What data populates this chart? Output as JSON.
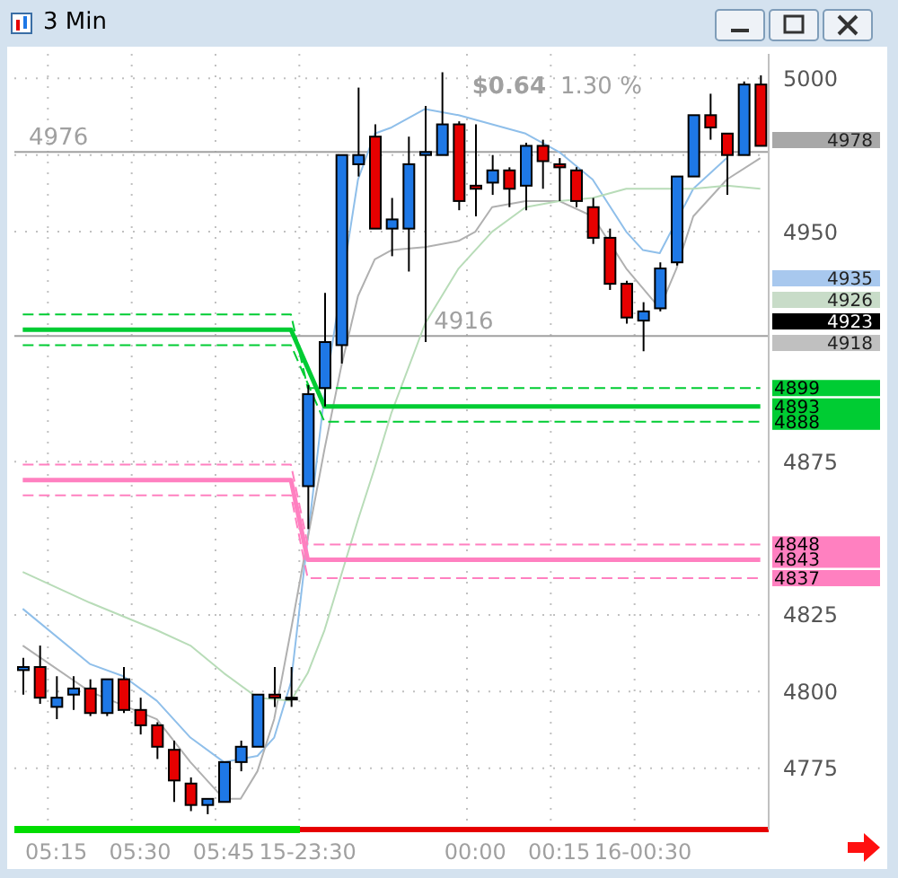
{
  "chart_data": {
    "type": "candlestick",
    "title": "3 Min",
    "categories": [
      null,
      null,
      "05:15",
      null,
      null,
      null,
      null,
      "05:30",
      null,
      null,
      null,
      null,
      "05:45",
      null,
      null,
      null,
      null,
      "15-23:30",
      null,
      null,
      null,
      null,
      null,
      null,
      null,
      null,
      null,
      "00:00",
      null,
      null,
      null,
      null,
      "00:15",
      null,
      null,
      null,
      null,
      "16-00:30",
      null,
      null,
      null,
      null,
      null,
      null,
      null
    ],
    "ohlc": [
      [
        4807,
        4811,
        4799,
        4808
      ],
      [
        4808,
        4815,
        4796,
        4798
      ],
      [
        4795,
        4805,
        4791,
        4798
      ],
      [
        4799,
        4805,
        4794,
        4801
      ],
      [
        4801,
        4804,
        4792,
        4793
      ],
      [
        4793,
        4804,
        4792,
        4804
      ],
      [
        4804,
        4808,
        4793,
        4794
      ],
      [
        4794,
        4798,
        4786,
        4789
      ],
      [
        4789,
        4790,
        4778,
        4782
      ],
      [
        4781,
        4784,
        4764,
        4771
      ],
      [
        4770,
        4772,
        4761,
        4763
      ],
      [
        4763,
        4765,
        4760,
        4765
      ],
      [
        4764,
        4777,
        4764,
        4777
      ],
      [
        4777,
        4784,
        4774,
        4782
      ],
      [
        4782,
        4799,
        4782,
        4799
      ],
      [
        4799,
        4808,
        4795,
        4798
      ],
      [
        4798,
        4808,
        4795,
        4798
      ],
      [
        4867,
        4900,
        4853,
        4897
      ],
      [
        4899,
        4930,
        4893,
        4914
      ],
      [
        4913,
        4975,
        4907,
        4975
      ],
      [
        4972,
        4997,
        4968,
        4975
      ],
      [
        4981,
        4985,
        4951,
        4951
      ],
      [
        4951,
        4961,
        4942,
        4954
      ],
      [
        4951,
        4981,
        4937,
        4972
      ],
      [
        4975,
        4991,
        4914,
        4976
      ],
      [
        4975,
        5002,
        4975,
        4985
      ],
      [
        4985,
        4986,
        4957,
        4960
      ],
      [
        4965,
        4985,
        4955,
        4964
      ],
      [
        4966,
        4975,
        4962,
        4970
      ],
      [
        4970,
        4971,
        4958,
        4964
      ],
      [
        4965,
        4979,
        4957,
        4978
      ],
      [
        4978,
        4980,
        4964,
        4973
      ],
      [
        4972,
        4974,
        4960,
        4971
      ],
      [
        4970,
        4971,
        4958,
        4960
      ],
      [
        4958,
        4961,
        4946,
        4948
      ],
      [
        4948,
        4951,
        4931,
        4933
      ],
      [
        4933,
        4934,
        4920,
        4922
      ],
      [
        4921,
        4927,
        4911,
        4924
      ],
      [
        4925,
        4940,
        4924,
        4938
      ],
      [
        4940,
        4968,
        4939,
        4968
      ],
      [
        4968,
        4988,
        4968,
        4988
      ],
      [
        4988,
        4995,
        4980,
        4984
      ],
      [
        4982,
        4982,
        4962,
        4975
      ],
      [
        4975,
        4999,
        4975,
        4998
      ],
      [
        4998,
        5001,
        4978,
        4978
      ]
    ],
    "colors": [
      "#1e78e6",
      "#e60000",
      "#1e78e6",
      "#1e78e6",
      "#e60000",
      "#1e78e6",
      "#e60000",
      "#e60000",
      "#e60000",
      "#e60000",
      "#e60000",
      "#1e78e6",
      "#1e78e6",
      "#1e78e6",
      "#1e78e6",
      "#e60000",
      "#e60000",
      "#1e78e6",
      "#1e78e6",
      "#1e78e6",
      "#1e78e6",
      "#e60000",
      "#1e78e6",
      "#1e78e6",
      "#1e78e6",
      "#1e78e6",
      "#e60000",
      "#e60000",
      "#1e78e6",
      "#e60000",
      "#1e78e6",
      "#e60000",
      "#e60000",
      "#e60000",
      "#e60000",
      "#e60000",
      "#e60000",
      "#1e78e6",
      "#1e78e6",
      "#1e78e6",
      "#1e78e6",
      "#e60000",
      "#e60000",
      "#1e78e6",
      "#e60000"
    ],
    "series": [
      {
        "type": "line",
        "color": "#8fbfea",
        "values": [
          4827,
          null,
          null,
          null,
          4809,
          null,
          4805,
          null,
          4797,
          null,
          4785,
          null,
          4777,
          null,
          4779,
          4785,
          4803,
          4850,
          4897,
          null,
          4967,
          4982,
          4984,
          null,
          4990,
          null,
          4988,
          null,
          4985,
          null,
          4982,
          null,
          4976,
          null,
          4967,
          null,
          4950,
          4944,
          4943,
          null,
          4964,
          null,
          4974,
          null,
          null
        ]
      },
      {
        "type": "line",
        "color": "#b0b0b0",
        "values": [
          4815,
          null,
          null,
          null,
          4800,
          null,
          null,
          null,
          4791,
          null,
          4777,
          null,
          4765,
          4765,
          4774,
          4791,
          4820,
          4850,
          4879,
          4906,
          4929,
          4941,
          4944,
          null,
          4945,
          null,
          4947,
          4950,
          4958,
          null,
          4960,
          null,
          4960,
          null,
          4955,
          null,
          4938,
          null,
          4925,
          4938,
          4955,
          null,
          4967,
          null,
          4974
        ]
      },
      {
        "type": "line",
        "color": "#b8dcb8",
        "values": [
          4839,
          null,
          null,
          null,
          4829,
          null,
          null,
          null,
          4820,
          null,
          4815,
          null,
          4806,
          null,
          4798,
          null,
          4797,
          4806,
          4820,
          4838,
          4856,
          4873,
          4891,
          null,
          4920,
          null,
          4938,
          null,
          4950,
          null,
          4958,
          null,
          4960,
          null,
          4961,
          null,
          4964,
          null,
          4964,
          null,
          4964,
          null,
          4965,
          null,
          4964
        ]
      },
      {
        "type": "line",
        "color": "#00cc33",
        "line_style": "dashed",
        "values": [
          4923,
          4923,
          4923,
          4923,
          4923,
          4923,
          4923,
          4923,
          4923,
          4923,
          4923,
          4923,
          4923,
          4923,
          4923,
          4923,
          4923,
          4899,
          4899,
          4899,
          4899,
          4899,
          4899,
          4899,
          4899,
          4899,
          4899,
          4899,
          4899,
          4899,
          4899,
          4899,
          4899,
          4899,
          4899,
          4899,
          4899,
          4899,
          4899,
          4899,
          4899,
          4899,
          4899,
          4899,
          4899
        ],
        "value_labels": [
          null,
          null,
          null,
          null,
          null,
          null,
          null,
          null,
          null,
          null,
          null,
          null,
          null,
          null,
          null,
          null,
          null,
          null,
          null,
          null,
          null,
          null,
          null,
          null,
          null,
          null,
          null,
          null,
          null,
          null,
          null,
          null,
          null,
          null,
          null,
          null,
          null,
          null,
          null,
          null,
          null,
          null,
          null,
          null,
          "4899"
        ]
      },
      {
        "type": "line",
        "color": "#00cc33",
        "line_style": "solid",
        "values": [
          4918,
          4918,
          4918,
          4918,
          4918,
          4918,
          4918,
          4918,
          4918,
          4918,
          4918,
          4918,
          4918,
          4918,
          4918,
          4918,
          4918,
          null,
          4893,
          4893,
          4893,
          4893,
          4893,
          4893,
          4893,
          4893,
          4893,
          4893,
          4893,
          4893,
          4893,
          4893,
          4893,
          4893,
          4893,
          4893,
          4893,
          4893,
          4893,
          4893,
          4893,
          4893,
          4893,
          4893,
          4893
        ],
        "value_labels": [
          null,
          null,
          null,
          null,
          null,
          null,
          null,
          null,
          null,
          null,
          null,
          null,
          null,
          null,
          null,
          null,
          null,
          null,
          null,
          null,
          null,
          null,
          null,
          null,
          null,
          null,
          null,
          null,
          null,
          null,
          null,
          null,
          null,
          null,
          null,
          null,
          null,
          null,
          null,
          null,
          null,
          null,
          null,
          null,
          "4893"
        ]
      },
      {
        "type": "line",
        "color": "#00cc33",
        "line_style": "dashed",
        "values": [
          4913,
          4913,
          4913,
          4913,
          4913,
          4913,
          4913,
          4913,
          4913,
          4913,
          4913,
          4913,
          4913,
          4913,
          4913,
          4913,
          4913,
          null,
          4888,
          4888,
          4888,
          4888,
          4888,
          4888,
          4888,
          4888,
          4888,
          4888,
          4888,
          4888,
          4888,
          4888,
          4888,
          4888,
          4888,
          4888,
          4888,
          4888,
          4888,
          4888,
          4888,
          4888,
          4888,
          4888,
          4888
        ],
        "value_labels": [
          null,
          null,
          null,
          null,
          null,
          null,
          null,
          null,
          null,
          null,
          null,
          null,
          null,
          null,
          null,
          null,
          null,
          null,
          null,
          null,
          null,
          null,
          null,
          null,
          null,
          null,
          null,
          null,
          null,
          null,
          null,
          null,
          null,
          null,
          null,
          null,
          null,
          null,
          null,
          null,
          null,
          null,
          null,
          null,
          "4888"
        ]
      },
      {
        "type": "line",
        "color": "#ff80c0",
        "line_style": "dashed",
        "values": [
          4874,
          4874,
          4874,
          4874,
          4874,
          4874,
          4874,
          4874,
          4874,
          4874,
          4874,
          4874,
          4874,
          4874,
          4874,
          4874,
          4874,
          4848,
          4848,
          4848,
          4848,
          4848,
          4848,
          4848,
          4848,
          4848,
          4848,
          4848,
          4848,
          4848,
          4848,
          4848,
          4848,
          4848,
          4848,
          4848,
          4848,
          4848,
          4848,
          4848,
          4848,
          4848,
          4848,
          4848,
          4848
        ],
        "value_labels": [
          null,
          null,
          null,
          null,
          null,
          null,
          null,
          null,
          null,
          null,
          null,
          null,
          null,
          null,
          null,
          null,
          null,
          null,
          null,
          null,
          null,
          null,
          null,
          null,
          null,
          null,
          null,
          null,
          null,
          null,
          null,
          null,
          null,
          null,
          null,
          null,
          null,
          null,
          null,
          null,
          null,
          null,
          null,
          null,
          "4848"
        ]
      },
      {
        "type": "line",
        "color": "#ff80c0",
        "line_style": "solid",
        "values": [
          4869,
          4869,
          4869,
          4869,
          4869,
          4869,
          4869,
          4869,
          4869,
          4869,
          4869,
          4869,
          4869,
          4869,
          4869,
          4869,
          4869,
          4843,
          4843,
          4843,
          4843,
          4843,
          4843,
          4843,
          4843,
          4843,
          4843,
          4843,
          4843,
          4843,
          4843,
          4843,
          4843,
          4843,
          4843,
          4843,
          4843,
          4843,
          4843,
          4843,
          4843,
          4843,
          4843,
          4843,
          4843
        ],
        "value_labels": [
          null,
          null,
          null,
          null,
          null,
          null,
          null,
          null,
          null,
          null,
          null,
          null,
          null,
          null,
          null,
          null,
          null,
          null,
          null,
          null,
          null,
          null,
          null,
          null,
          null,
          null,
          null,
          null,
          null,
          null,
          null,
          null,
          null,
          null,
          null,
          null,
          null,
          null,
          null,
          null,
          null,
          null,
          null,
          null,
          "4843"
        ]
      },
      {
        "type": "line",
        "color": "#ff80c0",
        "line_style": "dashed",
        "values": [
          4864,
          4864,
          4864,
          4864,
          4864,
          4864,
          4864,
          4864,
          4864,
          4864,
          4864,
          4864,
          4864,
          4864,
          4864,
          4864,
          4864,
          4837,
          4837,
          4837,
          4837,
          4837,
          4837,
          4837,
          4837,
          4837,
          4837,
          4837,
          4837,
          4837,
          4837,
          4837,
          4837,
          4837,
          4837,
          4837,
          4837,
          4837,
          4837,
          4837,
          4837,
          4837,
          4837,
          4837,
          4837
        ],
        "value_labels": [
          null,
          null,
          null,
          null,
          null,
          null,
          null,
          null,
          null,
          null,
          null,
          null,
          null,
          null,
          null,
          null,
          null,
          null,
          null,
          null,
          null,
          null,
          null,
          null,
          null,
          null,
          null,
          null,
          null,
          null,
          null,
          null,
          null,
          null,
          null,
          null,
          null,
          null,
          null,
          null,
          null,
          null,
          null,
          null,
          "4837"
        ]
      }
    ],
    "ylim": [
      4755,
      5008
    ],
    "yticks": [
      4775,
      4800,
      4825,
      4875,
      4950,
      {
        "value": 4975,
        "label": null
      },
      5000
    ],
    "grid": true,
    "ref_lines": [
      {
        "axis": "y",
        "value": 4976,
        "label": "4976",
        "color": "#a0a0a0"
      },
      {
        "axis": "y",
        "value": 4916,
        "label": "4916",
        "color": "#a0a0a0"
      }
    ],
    "annotations": [
      "$0.64",
      "1.30 %",
      "4978",
      "4935",
      "4926",
      "4923",
      "4918"
    ]
  }
}
